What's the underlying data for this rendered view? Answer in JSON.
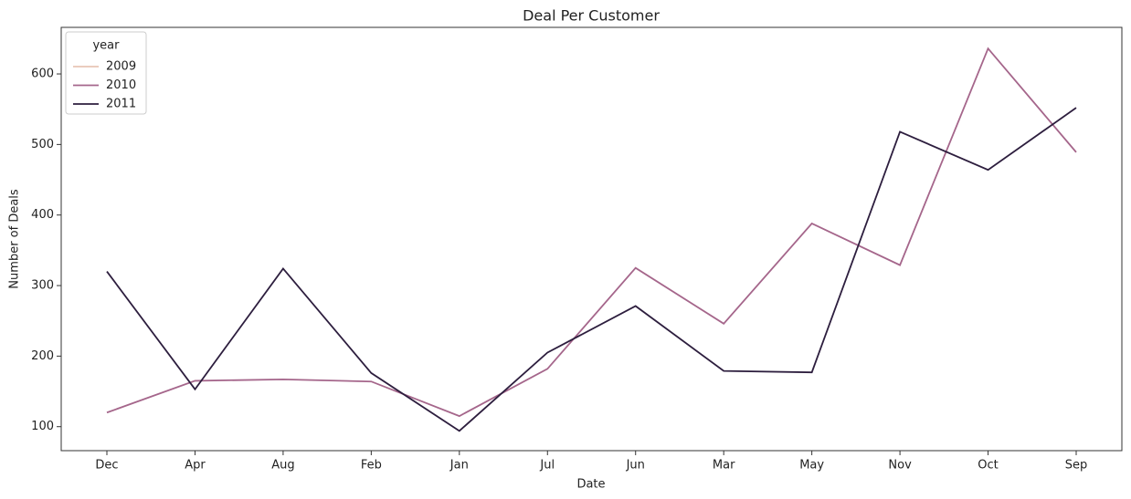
{
  "chart_data": {
    "type": "line",
    "title": "Deal Per Customer",
    "x_label": "Date",
    "y_label": "Number of Deals",
    "categories": [
      "Dec",
      "Apr",
      "Aug",
      "Feb",
      "Jan",
      "Jul",
      "Jun",
      "Mar",
      "May",
      "Nov",
      "Oct",
      "Sep"
    ],
    "legend_title": "year",
    "legend": "upper left",
    "series": [
      {
        "name": "2009",
        "color": "#e8c5b4",
        "values": [
          null,
          null,
          null,
          null,
          null,
          null,
          null,
          null,
          null,
          null,
          null,
          null
        ]
      },
      {
        "name": "2010",
        "color": "#a5668b",
        "values": [
          120,
          165,
          167,
          164,
          115,
          182,
          325,
          246,
          388,
          329,
          636,
          489
        ]
      },
      {
        "name": "2011",
        "color": "#2d1e3e",
        "values": [
          320,
          153,
          324,
          176,
          94,
          205,
          271,
          179,
          177,
          518,
          464,
          552
        ]
      }
    ],
    "ylim": [
      66,
      666
    ],
    "yticks": [
      100,
      200,
      300,
      400,
      500,
      600
    ]
  }
}
